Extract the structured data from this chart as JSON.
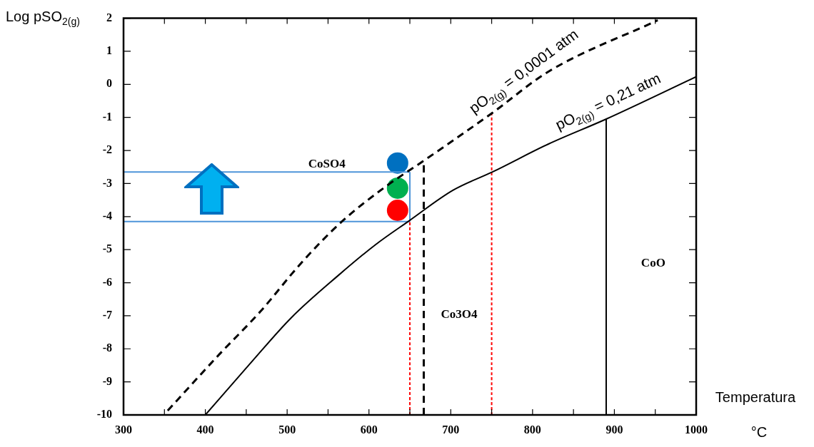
{
  "chart_data": {
    "type": "line",
    "xlabel": "Temperatura °C",
    "ylabel": "Log pSO$_{2(g)}$",
    "xlim": [
      300,
      1000
    ],
    "xticks": [
      300,
      {
        "value": 350,
        "label": null
      },
      400,
      {
        "value": 450,
        "label": null
      },
      500,
      {
        "value": 550,
        "label": null
      },
      600,
      {
        "value": 650,
        "label": null
      },
      700,
      {
        "value": 750,
        "label": null
      },
      800,
      {
        "value": 850,
        "label": null
      },
      900,
      {
        "value": 950,
        "label": null
      },
      1000
    ],
    "ylim": [
      -10,
      2
    ],
    "yticks": [
      -10,
      -9,
      -8,
      -7,
      -6,
      -5,
      -4,
      -3,
      -2,
      -1,
      0,
      1,
      2
    ],
    "grid": false,
    "legend": false,
    "marker": "none",
    "series": [
      {
        "color": "#000000",
        "line_style": "dashed",
        "x": [
          354,
          417,
          467,
          517,
          566,
          620,
          667,
          751,
          819,
          953
        ],
        "values": [
          -9.87,
          -8.17,
          -6.88,
          -5.41,
          -4.17,
          -3.1,
          -2.31,
          -0.86,
          0.38,
          1.94
        ]
      },
      {
        "color": "#000000",
        "line_style": "solid",
        "x": [
          400,
          455,
          505,
          563,
          608,
          649,
          703,
          751,
          819,
          890,
          1000
        ],
        "values": [
          -10,
          -8.44,
          -7.06,
          -5.77,
          -4.85,
          -4.13,
          -3.2,
          -2.65,
          -1.81,
          -1.05,
          0.23
        ]
      },
      {
        "color": "#ff0000",
        "line_style": "dotted",
        "x": [
          650,
          650
        ],
        "values": [
          -10,
          -4.13
        ]
      },
      {
        "color": "#ff0000",
        "line_style": "dotted",
        "x": [
          750,
          750
        ],
        "values": [
          -10,
          -0.86
        ]
      },
      {
        "color": "#000000",
        "line_style": "dashed",
        "x": [
          667,
          667
        ],
        "values": [
          -10,
          -2.31
        ]
      },
      {
        "color": "#000000",
        "line_style": "solid",
        "x": [
          890,
          890
        ],
        "values": [
          -10,
          -1.05
        ]
      },
      {
        "color": "#4e95d9",
        "line_style": "solid",
        "x": [
          300,
          650
        ],
        "values": [
          -2.65,
          -2.65
        ]
      },
      {
        "color": "#4e95d9",
        "line_style": "solid",
        "x": [
          300,
          650
        ],
        "values": [
          -4.15,
          -4.15
        ]
      },
      {
        "color": "#4e95d9",
        "line_style": "solid",
        "x": [
          650,
          650
        ],
        "values": [
          -2.65,
          -4.15
        ]
      },
      {
        "type": "scatter",
        "marker": "circle",
        "x": [
          635,
          635,
          635
        ],
        "values": [
          -2.38,
          -3.14,
          -3.81
        ],
        "colors": [
          "#0070c0",
          "#00b050",
          "#ff0000"
        ]
      }
    ],
    "annotations": [
      "CoSO4",
      "Co3O4",
      "CoO",
      {
        "text": "pO$_{2(g)}$ = 0,0001 atm",
        "x": 800,
        "y": 0.03
      },
      {
        "text": "pO$_{2(g)}$ = 0,21 atm",
        "x": 900,
        "y": -0.93
      }
    ]
  }
}
